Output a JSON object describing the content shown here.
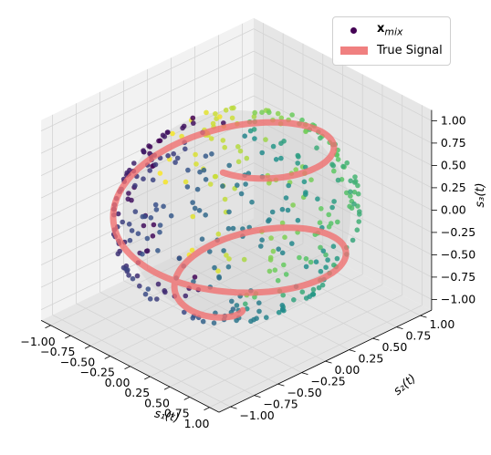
{
  "chart_data": {
    "type": "scatter3d",
    "axes": {
      "x": {
        "label": "s₁(t)",
        "ticks": [
          "−1.00",
          "−0.75",
          "−0.50",
          "−0.25",
          "0.00",
          "0.25",
          "0.50",
          "0.75",
          "1.00"
        ],
        "range": [
          -1,
          1
        ]
      },
      "y": {
        "label": "s₂(t)",
        "ticks": [
          "−1.00",
          "−0.75",
          "−0.50",
          "−0.25",
          "0.00",
          "0.25",
          "0.50",
          "0.75",
          "1.00"
        ],
        "range": [
          -1,
          1
        ]
      },
      "z": {
        "label": "s₃(t)",
        "ticks": [
          "−1.00",
          "−0.75",
          "−0.50",
          "−0.25",
          "0.00",
          "0.25",
          "0.50",
          "0.75",
          "1.00"
        ],
        "range": [
          -1,
          1
        ]
      }
    },
    "grid": true,
    "legend": {
      "placement": "upper-right",
      "entries": [
        {
          "label": "x",
          "subscript": "mix",
          "marker": "dot",
          "color": "#440154"
        },
        {
          "label": "True Signal",
          "marker": "thick-line",
          "color": "#f08080"
        }
      ]
    },
    "series": [
      {
        "name": "x_mix",
        "kind": "points on unit sphere",
        "point_count": 400,
        "colormap": "viridis"
      },
      {
        "name": "True Signal",
        "kind": "spiral curve on unit sphere",
        "color": "#f08080"
      }
    ],
    "sphere": {
      "radius": 1,
      "color": "#c8c8c8"
    },
    "colors": {
      "pane": "#f2f2f2",
      "pane_dark": "#e6e6e6",
      "grid": "#d4d4d4",
      "signal": "#f07070"
    }
  }
}
